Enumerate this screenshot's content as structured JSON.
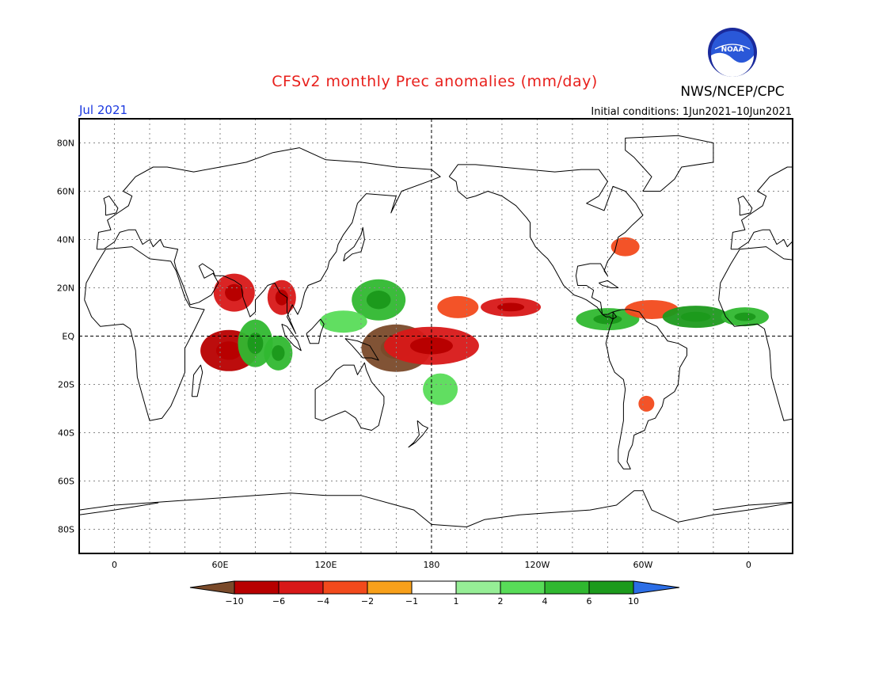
{
  "header": {
    "title": "CFSv2 monthly Prec anomalies (mm/day)",
    "org": "NWS/NCEP/CPC",
    "logo_text": "NOAA",
    "valid_month": "Jul 2021",
    "initial_conditions": "Initial conditions: 1Jun2021–10Jun2021"
  },
  "map": {
    "lat_labels": [
      "80N",
      "60N",
      "40N",
      "20N",
      "EQ",
      "20S",
      "40S",
      "60S",
      "80S"
    ],
    "lon_labels": [
      "0",
      "60E",
      "120E",
      "180",
      "120W",
      "60W",
      "0"
    ],
    "lon_range": [
      -20,
      385
    ],
    "lat_range": [
      -90,
      90
    ],
    "projection": "cylindrical equidistant"
  },
  "colorbar": {
    "labels": [
      "−10",
      "−6",
      "−4",
      "−2",
      "−1",
      "1",
      "2",
      "4",
      "6",
      "10"
    ],
    "colors": [
      "#7a4a2a",
      "#b80000",
      "#d81818",
      "#f24a1c",
      "#f8a01a",
      "#ffffff",
      "#96ee96",
      "#58dc58",
      "#30b830",
      "#1c9a1c",
      "#2c6ee6"
    ]
  },
  "chart_data": {
    "type": "heatmap",
    "units": "mm/day",
    "anomalies": [
      {
        "lon": 68,
        "lat": 18,
        "value": -4
      },
      {
        "lon": 95,
        "lat": 16,
        "value": -4
      },
      {
        "lon": 65,
        "lat": -6,
        "value": -6
      },
      {
        "lon": 80,
        "lat": -3,
        "value": 4
      },
      {
        "lon": 93,
        "lat": -7,
        "value": 4
      },
      {
        "lon": 150,
        "lat": 15,
        "value": 4
      },
      {
        "lon": 130,
        "lat": 6,
        "value": 2
      },
      {
        "lon": 160,
        "lat": -5,
        "value": -10
      },
      {
        "lon": 180,
        "lat": -4,
        "value": -4
      },
      {
        "lon": 185,
        "lat": -22,
        "value": 2
      },
      {
        "lon": 195,
        "lat": 12,
        "value": -2
      },
      {
        "lon": 225,
        "lat": 12,
        "value": -4
      },
      {
        "lon": 280,
        "lat": 7,
        "value": 4
      },
      {
        "lon": 305,
        "lat": 11,
        "value": -2
      },
      {
        "lon": 330,
        "lat": 8,
        "value": 6
      },
      {
        "lon": 358,
        "lat": 8,
        "value": 4
      },
      {
        "lon": 290,
        "lat": 37,
        "value": -2
      },
      {
        "lon": 302,
        "lat": -28,
        "value": -2
      }
    ]
  }
}
